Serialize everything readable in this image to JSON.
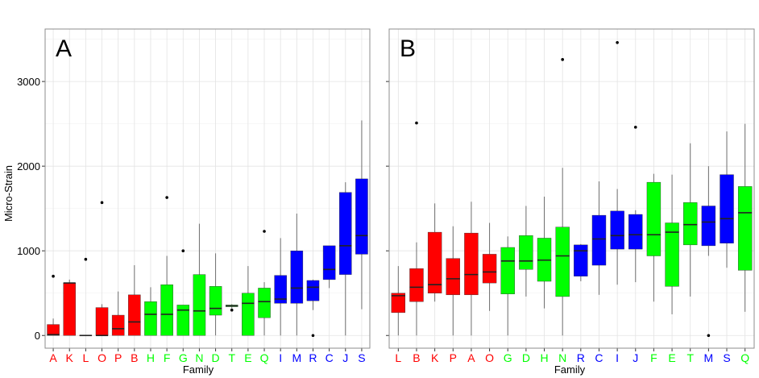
{
  "colors": {
    "red": "#ff0000",
    "green": "#00ff00",
    "blue": "#0000ff"
  },
  "chart_data": [
    {
      "type": "box",
      "panel_label": "A",
      "xlabel": "Family",
      "ylabel": "Micro-Strain",
      "ylim": [
        -150,
        3620
      ],
      "yticks": [
        0,
        1000,
        2000,
        3000
      ],
      "grid": true,
      "legend": "none",
      "categories": [
        {
          "name": "A",
          "group": "red",
          "min": 0,
          "q1": 0,
          "median": 10,
          "q3": 130,
          "max": 200,
          "outliers": [
            700
          ]
        },
        {
          "name": "K",
          "group": "red",
          "min": 0,
          "q1": 0,
          "median": 620,
          "q3": 620,
          "max": 660,
          "outliers": []
        },
        {
          "name": "L",
          "group": "red",
          "min": 0,
          "q1": 0,
          "median": 0,
          "q3": 5,
          "max": 5,
          "outliers": [
            900
          ]
        },
        {
          "name": "O",
          "group": "red",
          "min": 0,
          "q1": 0,
          "median": 0,
          "q3": 330,
          "max": 370,
          "outliers": [
            1570
          ]
        },
        {
          "name": "P",
          "group": "red",
          "min": 0,
          "q1": 0,
          "median": 80,
          "q3": 240,
          "max": 520,
          "outliers": []
        },
        {
          "name": "B",
          "group": "red",
          "min": 0,
          "q1": 0,
          "median": 160,
          "q3": 480,
          "max": 830,
          "outliers": []
        },
        {
          "name": "H",
          "group": "green",
          "min": 0,
          "q1": 0,
          "median": 250,
          "q3": 400,
          "max": 570,
          "outliers": []
        },
        {
          "name": "F",
          "group": "green",
          "min": 0,
          "q1": 0,
          "median": 250,
          "q3": 600,
          "max": 940,
          "outliers": [
            1630
          ]
        },
        {
          "name": "G",
          "group": "green",
          "min": 0,
          "q1": 0,
          "median": 300,
          "q3": 360,
          "max": 360,
          "outliers": [
            1000
          ]
        },
        {
          "name": "N",
          "group": "green",
          "min": 0,
          "q1": 0,
          "median": 290,
          "q3": 720,
          "max": 1320,
          "outliers": []
        },
        {
          "name": "D",
          "group": "green",
          "min": 0,
          "q1": 240,
          "median": 320,
          "q3": 580,
          "max": 970,
          "outliers": []
        },
        {
          "name": "T",
          "group": "green",
          "min": 320,
          "q1": 340,
          "median": 350,
          "q3": 360,
          "max": 370,
          "outliers": [
            300
          ]
        },
        {
          "name": "E",
          "group": "green",
          "min": 0,
          "q1": 0,
          "median": 380,
          "q3": 500,
          "max": 820,
          "outliers": []
        },
        {
          "name": "Q",
          "group": "green",
          "min": 0,
          "q1": 210,
          "median": 400,
          "q3": 560,
          "max": 630,
          "outliers": [
            1230
          ]
        },
        {
          "name": "I",
          "group": "blue",
          "min": 0,
          "q1": 380,
          "median": 430,
          "q3": 710,
          "max": 1150,
          "outliers": []
        },
        {
          "name": "M",
          "group": "blue",
          "min": 0,
          "q1": 380,
          "median": 560,
          "q3": 1000,
          "max": 1440,
          "outliers": []
        },
        {
          "name": "R",
          "group": "blue",
          "min": 300,
          "q1": 410,
          "median": 570,
          "q3": 650,
          "max": 660,
          "outliers": [
            0
          ]
        },
        {
          "name": "C",
          "group": "blue",
          "min": 560,
          "q1": 660,
          "median": 780,
          "q3": 1060,
          "max": 1060,
          "outliers": []
        },
        {
          "name": "J",
          "group": "blue",
          "min": 0,
          "q1": 720,
          "median": 1060,
          "q3": 1690,
          "max": 1810,
          "outliers": []
        },
        {
          "name": "S",
          "group": "blue",
          "min": 310,
          "q1": 960,
          "median": 1180,
          "q3": 1850,
          "max": 2540,
          "outliers": []
        }
      ]
    },
    {
      "type": "box",
      "panel_label": "B",
      "xlabel": "Family",
      "ylabel": "",
      "ylim": [
        -150,
        3620
      ],
      "yticks": [
        0,
        1000,
        2000,
        3000
      ],
      "grid": true,
      "legend": "none",
      "categories": [
        {
          "name": "L",
          "group": "red",
          "min": 0,
          "q1": 270,
          "median": 470,
          "q3": 500,
          "max": 820,
          "outliers": []
        },
        {
          "name": "B",
          "group": "red",
          "min": 0,
          "q1": 400,
          "median": 570,
          "q3": 790,
          "max": 1100,
          "outliers": [
            2510
          ]
        },
        {
          "name": "K",
          "group": "red",
          "min": 400,
          "q1": 500,
          "median": 600,
          "q3": 1220,
          "max": 1560,
          "outliers": []
        },
        {
          "name": "P",
          "group": "red",
          "min": 0,
          "q1": 480,
          "median": 670,
          "q3": 910,
          "max": 1290,
          "outliers": []
        },
        {
          "name": "A",
          "group": "red",
          "min": 0,
          "q1": 480,
          "median": 720,
          "q3": 1210,
          "max": 1580,
          "outliers": []
        },
        {
          "name": "O",
          "group": "red",
          "min": 290,
          "q1": 620,
          "median": 750,
          "q3": 960,
          "max": 1330,
          "outliers": []
        },
        {
          "name": "G",
          "group": "green",
          "min": 0,
          "q1": 490,
          "median": 880,
          "q3": 1040,
          "max": 1170,
          "outliers": []
        },
        {
          "name": "D",
          "group": "green",
          "min": 460,
          "q1": 780,
          "median": 880,
          "q3": 1180,
          "max": 1530,
          "outliers": []
        },
        {
          "name": "H",
          "group": "green",
          "min": 320,
          "q1": 640,
          "median": 890,
          "q3": 1150,
          "max": 1640,
          "outliers": []
        },
        {
          "name": "N",
          "group": "green",
          "min": 0,
          "q1": 460,
          "median": 940,
          "q3": 1280,
          "max": 1980,
          "outliers": [
            3260
          ]
        },
        {
          "name": "R",
          "group": "blue",
          "min": 640,
          "q1": 700,
          "median": 1000,
          "q3": 1070,
          "max": 1080,
          "outliers": []
        },
        {
          "name": "C",
          "group": "blue",
          "min": 480,
          "q1": 830,
          "median": 1140,
          "q3": 1420,
          "max": 1820,
          "outliers": []
        },
        {
          "name": "I",
          "group": "blue",
          "min": 600,
          "q1": 1020,
          "median": 1180,
          "q3": 1470,
          "max": 1730,
          "outliers": [
            3460
          ]
        },
        {
          "name": "J",
          "group": "blue",
          "min": 630,
          "q1": 1020,
          "median": 1190,
          "q3": 1430,
          "max": 1480,
          "outliers": [
            2460
          ]
        },
        {
          "name": "F",
          "group": "green",
          "min": 400,
          "q1": 940,
          "median": 1190,
          "q3": 1810,
          "max": 1910,
          "outliers": []
        },
        {
          "name": "E",
          "group": "green",
          "min": 250,
          "q1": 580,
          "median": 1220,
          "q3": 1330,
          "max": 1900,
          "outliers": []
        },
        {
          "name": "T",
          "group": "green",
          "min": 460,
          "q1": 1070,
          "median": 1310,
          "q3": 1570,
          "max": 2270,
          "outliers": []
        },
        {
          "name": "M",
          "group": "blue",
          "min": 940,
          "q1": 1060,
          "median": 1340,
          "q3": 1530,
          "max": 2000,
          "outliers": [
            0
          ]
        },
        {
          "name": "S",
          "group": "blue",
          "min": 800,
          "q1": 1090,
          "median": 1380,
          "q3": 1900,
          "max": 2410,
          "outliers": []
        },
        {
          "name": "Q",
          "group": "green",
          "min": 280,
          "q1": 770,
          "median": 1450,
          "q3": 1760,
          "max": 2500,
          "outliers": []
        }
      ]
    }
  ]
}
